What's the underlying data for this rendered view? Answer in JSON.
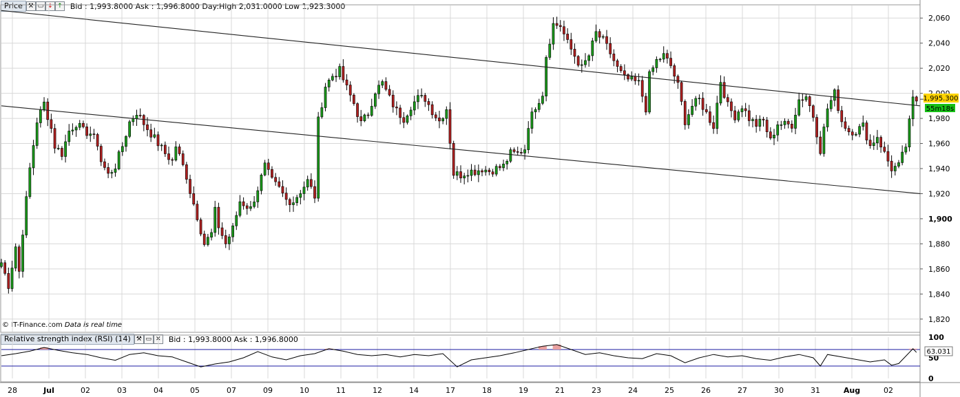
{
  "main_toolbar": {
    "title": "Price",
    "info": "Bid : 1,993.8000 Ask : 1,996.8000 Day:High 2,031.0000 Low 1,923.3000",
    "icons": [
      "wrench-icon",
      "window-icon",
      "arrow-down-icon",
      "arrow-up-icon"
    ]
  },
  "rsi_toolbar": {
    "title": "Relative strength index (RSI) (14)",
    "info": "Bid : 1,993.8000 Ask : 1,996.8000",
    "icons": [
      "wrench-icon",
      "window-icon",
      "close-icon"
    ]
  },
  "copyright": "© IT-Finance.com",
  "realtime_note": "Data is real time",
  "price_badge": "1,995.300",
  "timer_badge": "55m18s",
  "rsi_badge": "63.031",
  "colors": {
    "up": "#1a9a1a",
    "down": "#b02020",
    "wick": "#000000",
    "rsi_line": "#000000",
    "rsi_band": "#1a1aa0",
    "overbought_fill": "#e8a0a0",
    "badge_price": "#ffd400",
    "badge_timer": "#16c016",
    "grid": "#d8d8d8"
  },
  "chart_data": [
    {
      "type": "candlestick",
      "title": "Price",
      "ylim": [
        1810,
        2070
      ],
      "y_ticks": [
        1820,
        1840,
        1860,
        1880,
        1900,
        1920,
        1940,
        1960,
        1980,
        2000,
        2020,
        2040,
        2060
      ],
      "y_tick_labels": [
        "1,820",
        "1,840",
        "1,860",
        "1,880",
        "1,900",
        "1,920",
        "1,940",
        "1,960",
        "1,980",
        "2,000",
        "2,020",
        "2,040",
        "2,060"
      ],
      "x_tick_labels": [
        "28",
        "Jul",
        "02",
        "03",
        "04",
        "05",
        "07",
        "09",
        "10",
        "11",
        "12",
        "14",
        "17",
        "18",
        "19",
        "21",
        "23",
        "24",
        "25",
        "26",
        "27",
        "30",
        "31",
        "Aug",
        "02"
      ],
      "series": [
        {
          "values": [
            [
              0,
              1865
            ],
            [
              2,
              1847
            ],
            [
              4,
              1878
            ],
            [
              5,
              1858
            ],
            [
              6,
              1890
            ],
            [
              8,
              1940
            ],
            [
              10,
              1978
            ],
            [
              12,
              1992
            ],
            [
              14,
              1972
            ],
            [
              15,
              1958
            ],
            [
              17,
              1952
            ],
            [
              19,
              1970
            ],
            [
              21,
              1976
            ],
            [
              23,
              1970
            ],
            [
              25,
              1968
            ],
            [
              27,
              1960
            ],
            [
              28,
              1946
            ],
            [
              30,
              1935
            ],
            [
              32,
              1942
            ],
            [
              34,
              1958
            ],
            [
              36,
              1977
            ],
            [
              38,
              1985
            ],
            [
              40,
              1976
            ],
            [
              42,
              1968
            ],
            [
              44,
              1960
            ],
            [
              46,
              1952
            ],
            [
              48,
              1946
            ],
            [
              49,
              1958
            ],
            [
              50,
              1950
            ],
            [
              52,
              1934
            ],
            [
              53,
              1922
            ],
            [
              55,
              1902
            ],
            [
              57,
              1880
            ],
            [
              59,
              1888
            ],
            [
              60,
              1906
            ],
            [
              61,
              1894
            ],
            [
              63,
              1880
            ],
            [
              65,
              1892
            ],
            [
              67,
              1914
            ],
            [
              68,
              1912
            ],
            [
              70,
              1908
            ],
            [
              72,
              1924
            ],
            [
              74,
              1942
            ],
            [
              76,
              1930
            ],
            [
              78,
              1924
            ],
            [
              80,
              1915
            ],
            [
              82,
              1914
            ],
            [
              84,
              1922
            ],
            [
              86,
              1930
            ],
            [
              88,
              1918
            ],
            [
              89,
              1978
            ],
            [
              91,
              2006
            ],
            [
              93,
              2014
            ],
            [
              95,
              2018
            ],
            [
              97,
              2004
            ],
            [
              99,
              1992
            ],
            [
              101,
              1976
            ],
            [
              103,
              1984
            ],
            [
              105,
              2002
            ],
            [
              107,
              2008
            ],
            [
              109,
              1996
            ],
            [
              111,
              1986
            ],
            [
              113,
              1980
            ],
            [
              115,
              1990
            ],
            [
              117,
              1996
            ],
            [
              119,
              1996
            ],
            [
              121,
              1986
            ],
            [
              123,
              1978
            ],
            [
              125,
              1988
            ],
            [
              127,
              1936
            ],
            [
              129,
              1935
            ],
            [
              131,
              1938
            ],
            [
              133,
              1938
            ],
            [
              135,
              1940
            ],
            [
              137,
              1938
            ],
            [
              139,
              1940
            ],
            [
              141,
              1942
            ],
            [
              143,
              1952
            ],
            [
              145,
              1952
            ],
            [
              147,
              1956
            ],
            [
              148,
              1975
            ],
            [
              150,
              1990
            ],
            [
              152,
              2000
            ],
            [
              153,
              2030
            ],
            [
              155,
              2055
            ],
            [
              157,
              2054
            ],
            [
              159,
              2040
            ],
            [
              161,
              2030
            ],
            [
              163,
              2020
            ],
            [
              165,
              2030
            ],
            [
              167,
              2048
            ],
            [
              169,
              2042
            ],
            [
              171,
              2032
            ],
            [
              173,
              2020
            ],
            [
              175,
              2012
            ],
            [
              177,
              2010
            ],
            [
              179,
              2008
            ],
            [
              181,
              1988
            ],
            [
              182,
              2014
            ],
            [
              184,
              2026
            ],
            [
              186,
              2030
            ],
            [
              188,
              2022
            ],
            [
              190,
              2006
            ],
            [
              192,
              1978
            ],
            [
              194,
              1990
            ],
            [
              196,
              1995
            ],
            [
              198,
              1984
            ],
            [
              200,
              1974
            ],
            [
              202,
              2010
            ],
            [
              204,
              1990
            ],
            [
              206,
              1982
            ],
            [
              208,
              1990
            ],
            [
              210,
              1980
            ],
            [
              212,
              1975
            ],
            [
              214,
              1978
            ],
            [
              216,
              1962
            ],
            [
              218,
              1976
            ],
            [
              220,
              1975
            ],
            [
              222,
              1975
            ],
            [
              224,
              1995
            ],
            [
              226,
              1998
            ],
            [
              228,
              1982
            ],
            [
              230,
              1955
            ],
            [
              232,
              1988
            ],
            [
              234,
              2000
            ],
            [
              236,
              1978
            ],
            [
              238,
              1970
            ],
            [
              240,
              1970
            ],
            [
              242,
              1974
            ],
            [
              244,
              1958
            ],
            [
              246,
              1966
            ],
            [
              248,
              1952
            ],
            [
              250,
              1940
            ],
            [
              252,
              1942
            ],
            [
              254,
              1958
            ],
            [
              256,
              1995
            ],
            [
              257,
              1993.8
            ]
          ]
        },
        {
          "values": [
            [
              0,
              2066
            ],
            [
              258,
              1990
            ]
          ]
        },
        {
          "values": [
            [
              0,
              1990
            ],
            [
              258,
              1920
            ]
          ]
        }
      ]
    },
    {
      "type": "line",
      "title": "Relative strength index (RSI) (14)",
      "ylim": [
        0,
        100
      ],
      "y_ticks": [
        0,
        50,
        100
      ],
      "y_tick_labels": [
        "0",
        "50",
        "100"
      ],
      "bands": [
        30,
        70
      ],
      "last_value": 63.031,
      "x_tick_labels": [
        "28",
        "Jul",
        "02",
        "03",
        "04",
        "05",
        "07",
        "09",
        "10",
        "11",
        "12",
        "14",
        "17",
        "18",
        "19",
        "21",
        "23",
        "24",
        "25",
        "26",
        "27",
        "30",
        "31",
        "Aug",
        "02"
      ],
      "series": [
        {
          "values": [
            [
              0,
              55
            ],
            [
              4,
              60
            ],
            [
              8,
              66
            ],
            [
              12,
              75
            ],
            [
              16,
              68
            ],
            [
              20,
              62
            ],
            [
              24,
              58
            ],
            [
              28,
              50
            ],
            [
              32,
              44
            ],
            [
              36,
              58
            ],
            [
              40,
              62
            ],
            [
              44,
              55
            ],
            [
              48,
              52
            ],
            [
              52,
              40
            ],
            [
              56,
              28
            ],
            [
              60,
              35
            ],
            [
              64,
              40
            ],
            [
              68,
              50
            ],
            [
              72,
              65
            ],
            [
              76,
              52
            ],
            [
              80,
              45
            ],
            [
              84,
              55
            ],
            [
              88,
              60
            ],
            [
              92,
              72
            ],
            [
              96,
              66
            ],
            [
              100,
              58
            ],
            [
              104,
              55
            ],
            [
              108,
              58
            ],
            [
              112,
              52
            ],
            [
              116,
              58
            ],
            [
              120,
              55
            ],
            [
              124,
              60
            ],
            [
              128,
              28
            ],
            [
              132,
              45
            ],
            [
              136,
              50
            ],
            [
              140,
              55
            ],
            [
              144,
              62
            ],
            [
              148,
              70
            ],
            [
              152,
              78
            ],
            [
              156,
              82
            ],
            [
              160,
              70
            ],
            [
              164,
              58
            ],
            [
              168,
              62
            ],
            [
              172,
              55
            ],
            [
              176,
              50
            ],
            [
              180,
              48
            ],
            [
              184,
              60
            ],
            [
              188,
              55
            ],
            [
              192,
              38
            ],
            [
              196,
              50
            ],
            [
              200,
              58
            ],
            [
              204,
              52
            ],
            [
              208,
              55
            ],
            [
              212,
              48
            ],
            [
              216,
              44
            ],
            [
              220,
              52
            ],
            [
              224,
              58
            ],
            [
              228,
              50
            ],
            [
              230,
              30
            ],
            [
              232,
              58
            ],
            [
              236,
              52
            ],
            [
              240,
              46
            ],
            [
              244,
              40
            ],
            [
              248,
              45
            ],
            [
              250,
              32
            ],
            [
              252,
              36
            ],
            [
              256,
              72
            ],
            [
              257,
              63.031
            ]
          ]
        }
      ]
    }
  ]
}
